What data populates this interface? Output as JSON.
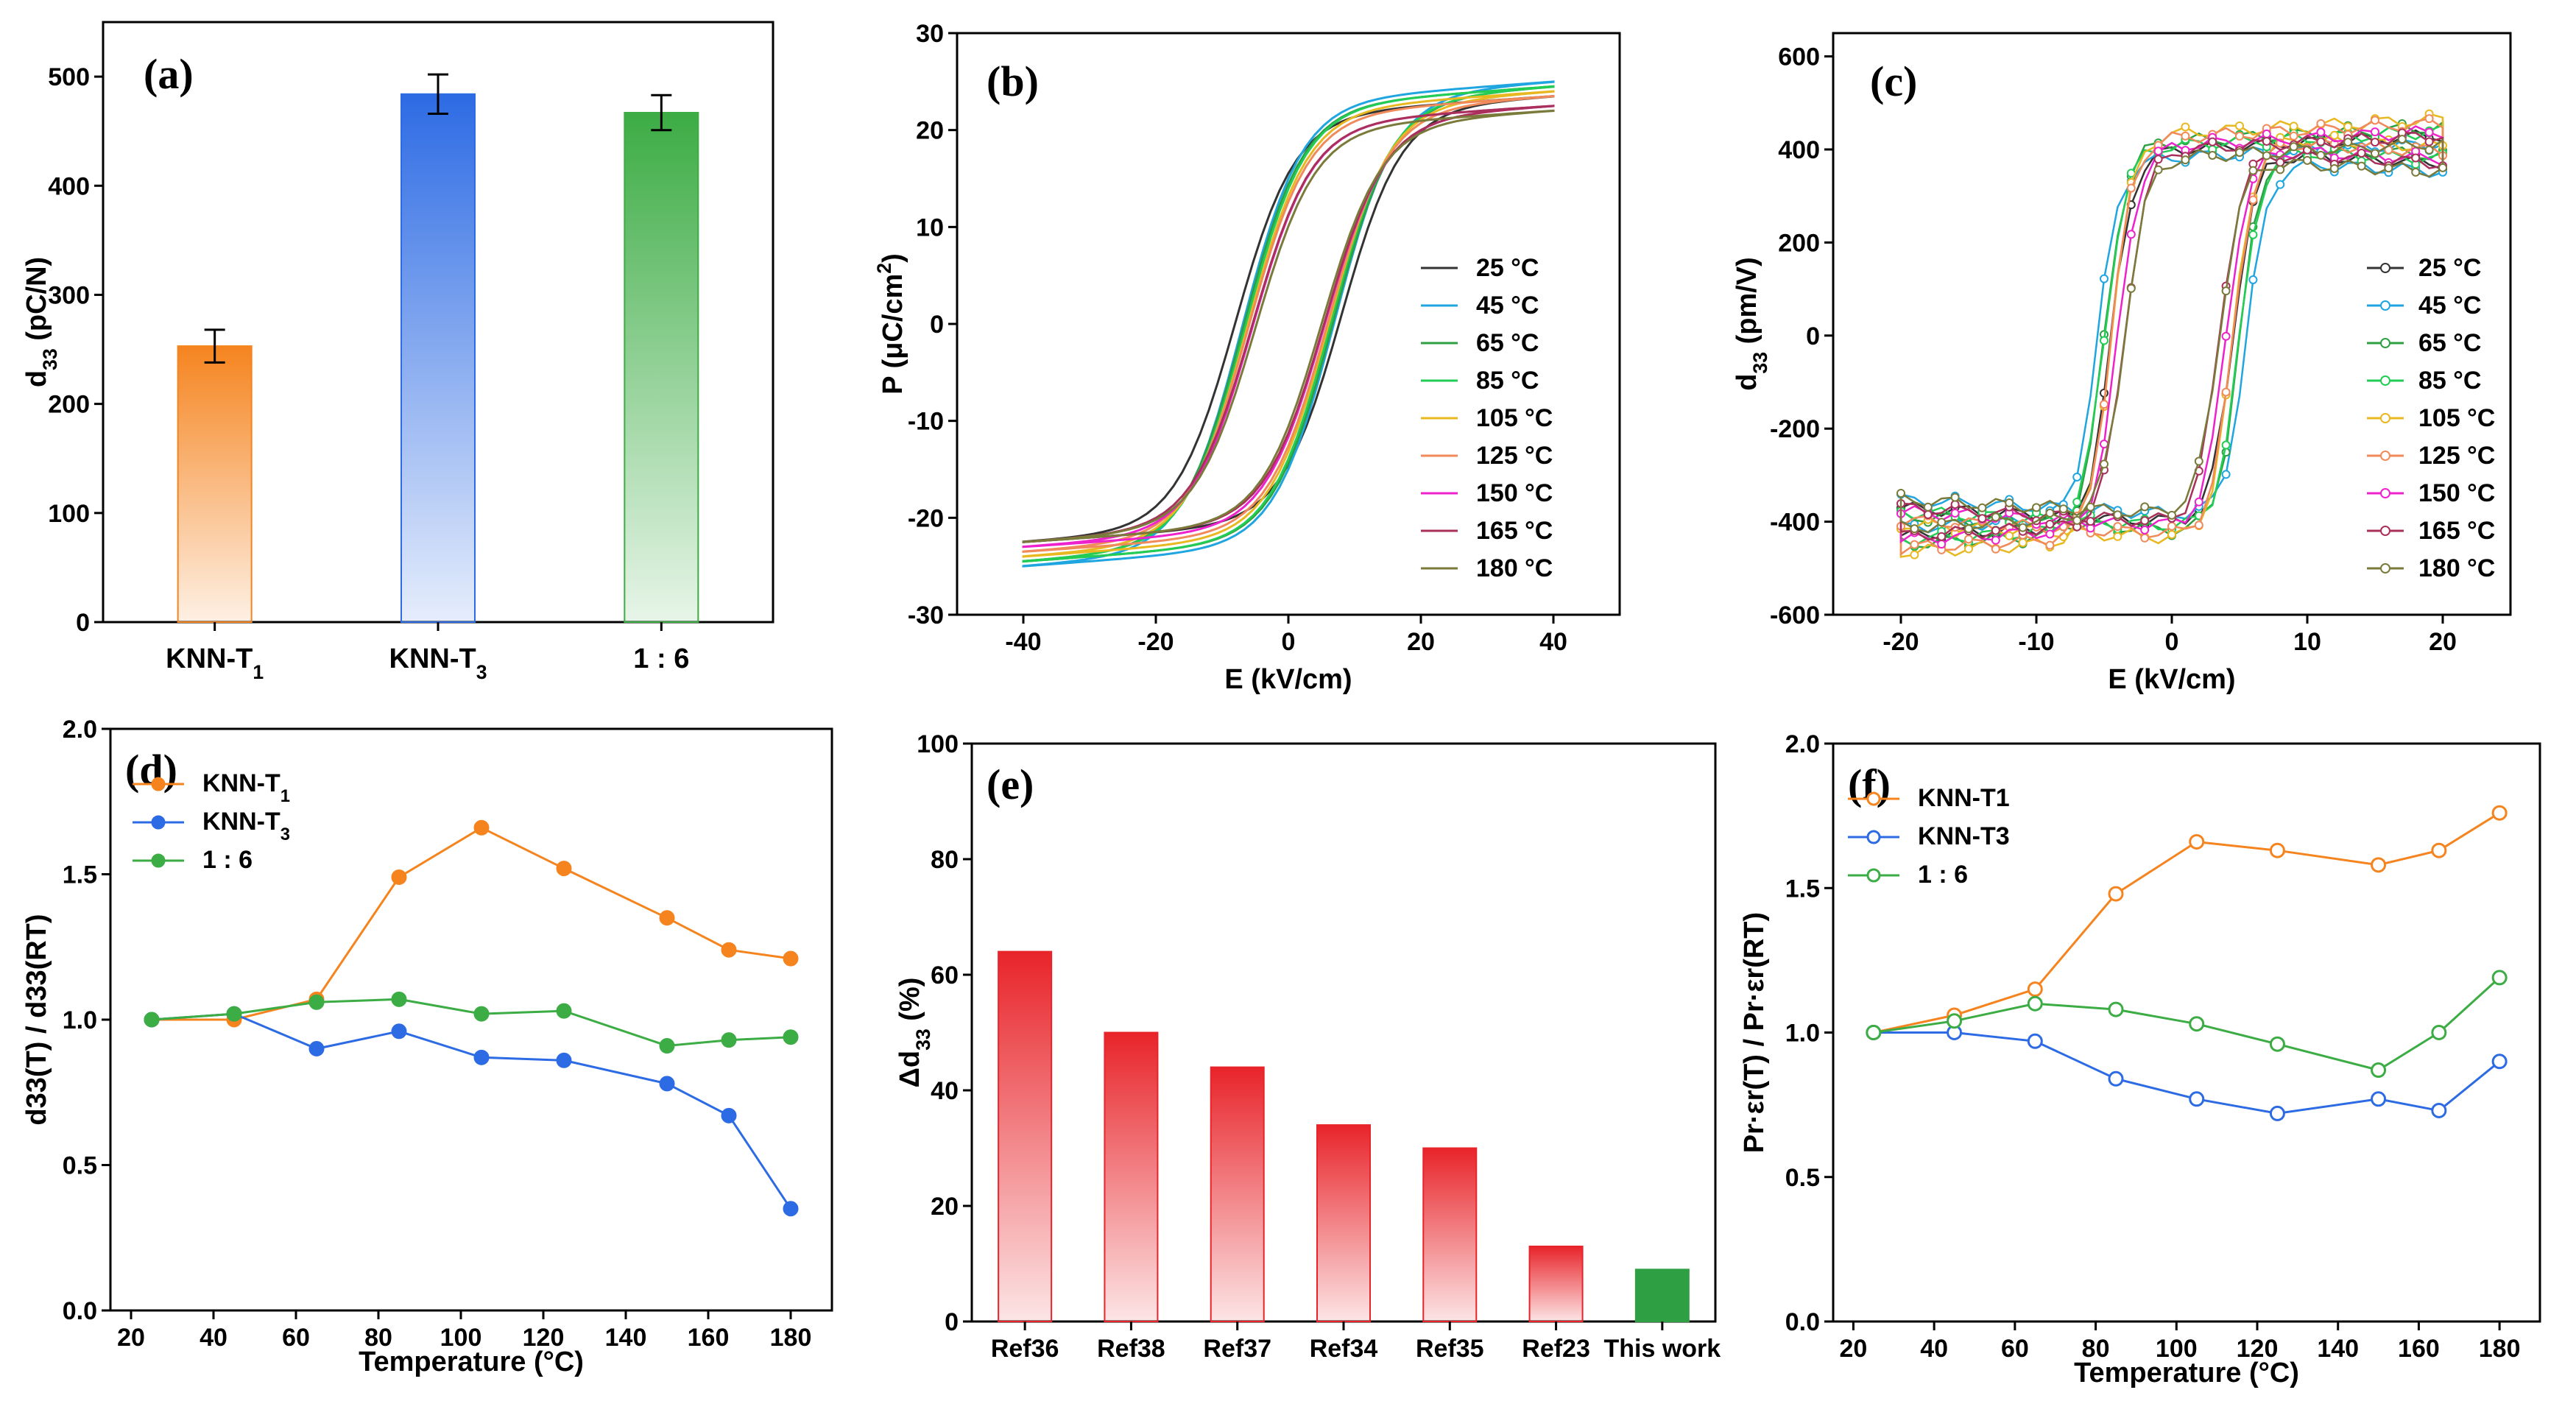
{
  "chart_data": [
    {
      "panel": "(a)",
      "type": "bar",
      "categories": [
        "KNN-T1",
        "KNN-T3",
        "1 : 6"
      ],
      "category_labels": [
        {
          "main": "KNN-T",
          "sub": "1"
        },
        {
          "main": "KNN-T",
          "sub": "3"
        },
        {
          "main": "1 : 6",
          "sub": ""
        }
      ],
      "values": [
        253,
        484,
        467
      ],
      "errors": [
        15,
        18,
        16
      ],
      "colors": [
        "#f5841f",
        "#2d6be4",
        "#3cac44"
      ],
      "ylabel": "d33 (pC/N)",
      "ylabel_main": "d",
      "ylabel_sub": "33",
      "ylabel_rest": " (pC/N)",
      "ylim": [
        0,
        550
      ],
      "yticks": [
        0,
        100,
        200,
        300,
        400,
        500
      ]
    },
    {
      "panel": "(b)",
      "type": "line",
      "xlabel": "E (kV/cm)",
      "ylabel_main": "P (",
      "ylabel_mu": "μ",
      "ylabel_unit": "C/cm",
      "ylabel_sup": "2",
      "ylabel_end": ")",
      "ylabel": "P (μC/cm2)",
      "xlim": [
        -50,
        50
      ],
      "ylim": [
        -30,
        30
      ],
      "xticks": [
        -40,
        -20,
        0,
        20,
        40
      ],
      "yticks": [
        -30,
        -20,
        -10,
        0,
        10,
        20,
        30
      ],
      "series": [
        {
          "name": "25 °C",
          "color": "#333333",
          "Ec": 8,
          "Pmax": 23.5,
          "Pr": 20,
          "Pneg": -22.5
        },
        {
          "name": "45 °C",
          "color": "#1fa5e0",
          "Ec": 7,
          "Pmax": 25,
          "Pr": 19,
          "Pneg": -25
        },
        {
          "name": "65 °C",
          "color": "#2ea043",
          "Ec": 6.8,
          "Pmax": 24.5,
          "Pr": 18.5,
          "Pneg": -24.5
        },
        {
          "name": "85 °C",
          "color": "#22cc55",
          "Ec": 6.5,
          "Pmax": 24.5,
          "Pr": 18,
          "Pneg": -24.5
        },
        {
          "name": "105 °C",
          "color": "#e8b820",
          "Ec": 6.2,
          "Pmax": 24,
          "Pr": 17.5,
          "Pneg": -24
        },
        {
          "name": "125 °C",
          "color": "#f08a5a",
          "Ec": 6,
          "Pmax": 23.5,
          "Pr": 17,
          "Pneg": -23.5
        },
        {
          "name": "150 °C",
          "color": "#ee22cc",
          "Ec": 5.5,
          "Pmax": 22.5,
          "Pr": 15,
          "Pneg": -23
        },
        {
          "name": "165 °C",
          "color": "#a8305a",
          "Ec": 5.5,
          "Pmax": 22.5,
          "Pr": 15,
          "Pneg": -22.5
        },
        {
          "name": "180 °C",
          "color": "#7a7a3a",
          "Ec": 5,
          "Pmax": 22,
          "Pr": 13,
          "Pneg": -22.5
        }
      ]
    },
    {
      "panel": "(c)",
      "type": "line",
      "xlabel": "E (kV/cm)",
      "ylabel": "d33 (pm/V)",
      "ylabel_main": "d",
      "ylabel_sub": "33",
      "ylabel_rest": " (pm/V)",
      "xlim": [
        -25,
        25
      ],
      "ylim": [
        -600,
        650
      ],
      "xticks": [
        -20,
        -10,
        0,
        10,
        20
      ],
      "yticks": [
        -600,
        -400,
        -200,
        0,
        200,
        400,
        600
      ],
      "series": [
        {
          "name": "25 °C",
          "color": "#333333",
          "Ec": 4.5,
          "peak": 460
        },
        {
          "name": "45 °C",
          "color": "#1fa5e0",
          "Ec": 5.5,
          "peak": 440
        },
        {
          "name": "65 °C",
          "color": "#2ea043",
          "Ec": 5,
          "peak": 480
        },
        {
          "name": "85 °C",
          "color": "#22cc55",
          "Ec": 5,
          "peak": 470
        },
        {
          "name": "105 °C",
          "color": "#e8b820",
          "Ec": 4.5,
          "peak": 500
        },
        {
          "name": "125 °C",
          "color": "#f08a5a",
          "Ec": 4.5,
          "peak": 490
        },
        {
          "name": "150 °C",
          "color": "#ee22cc",
          "Ec": 4,
          "peak": 470
        },
        {
          "name": "165 °C",
          "color": "#a8305a",
          "Ec": 3.5,
          "peak": 460
        },
        {
          "name": "180 °C",
          "color": "#7a7a3a",
          "Ec": 3.5,
          "peak": 440
        }
      ]
    },
    {
      "panel": "(d)",
      "type": "line",
      "xlabel": "Temperature (°C)",
      "ylabel": "d33(T) / d33(RT)",
      "x": [
        25,
        45,
        65,
        85,
        105,
        125,
        150,
        165,
        180
      ],
      "xlim": [
        15,
        190
      ],
      "ylim": [
        0,
        2
      ],
      "xticks": [
        20,
        40,
        60,
        80,
        100,
        120,
        140,
        160,
        180
      ],
      "yticks": [
        0.0,
        0.5,
        1.0,
        1.5,
        2.0
      ],
      "ytick_labels": [
        "0.0",
        "0.5",
        "1.0",
        "1.5",
        "2.0"
      ],
      "series": [
        {
          "name": "KNN-T1",
          "label_main": "KNN-T",
          "label_sub": "1",
          "color": "#f5841f",
          "values": [
            1.0,
            1.0,
            1.07,
            1.49,
            1.66,
            1.52,
            1.35,
            1.24,
            1.21
          ]
        },
        {
          "name": "KNN-T3",
          "label_main": "KNN-T",
          "label_sub": "3",
          "color": "#2d6be4",
          "values": [
            1.0,
            1.02,
            0.9,
            0.96,
            0.87,
            0.86,
            0.78,
            0.67,
            0.35
          ]
        },
        {
          "name": "1 : 6",
          "label_main": "1 : 6",
          "label_sub": "",
          "color": "#3cac44",
          "values": [
            1.0,
            1.02,
            1.06,
            1.07,
            1.02,
            1.03,
            0.91,
            0.93,
            0.94
          ]
        }
      ]
    },
    {
      "panel": "(e)",
      "type": "bar",
      "categories": [
        "Ref36",
        "Ref38",
        "Ref37",
        "Ref34",
        "Ref35",
        "Ref23",
        "This work"
      ],
      "values": [
        64,
        50,
        44,
        34,
        30,
        13,
        9
      ],
      "ylabel": "Δd33 (%)",
      "ylabel_main": "Δd",
      "ylabel_sub": "33",
      "ylabel_rest": " (%)",
      "ylim": [
        0,
        100
      ],
      "yticks": [
        0,
        20,
        40,
        60,
        80,
        100
      ],
      "highlight_color": "#2ea043",
      "bar_color": "#e8242a"
    },
    {
      "panel": "(f)",
      "type": "line",
      "xlabel": "Temperature (°C)",
      "ylabel": "Pr·εr(T) / Pr·εr(RT)",
      "x": [
        25,
        45,
        65,
        85,
        105,
        125,
        150,
        165,
        180
      ],
      "xlim": [
        15,
        190
      ],
      "ylim": [
        0,
        2
      ],
      "xticks": [
        20,
        40,
        60,
        80,
        100,
        120,
        140,
        160,
        180
      ],
      "yticks": [
        0.0,
        0.5,
        1.0,
        1.5,
        2.0
      ],
      "ytick_labels": [
        "0.0",
        "0.5",
        "1.0",
        "1.5",
        "2.0"
      ],
      "series": [
        {
          "name": "KNN-T1",
          "label_main": "KNN-T1",
          "label_sub": "",
          "color": "#f5841f",
          "values": [
            1.0,
            1.06,
            1.15,
            1.48,
            1.66,
            1.63,
            1.58,
            1.63,
            1.76
          ]
        },
        {
          "name": "KNN-T3",
          "label_main": "KNN-T3",
          "label_sub": "",
          "color": "#2d6be4",
          "values": [
            1.0,
            1.0,
            0.97,
            0.84,
            0.77,
            0.72,
            0.77,
            0.73,
            0.9
          ]
        },
        {
          "name": "1 : 6",
          "label_main": "1 : 6",
          "label_sub": "",
          "color": "#3cac44",
          "values": [
            1.0,
            1.04,
            1.1,
            1.08,
            1.03,
            0.96,
            0.87,
            1.0,
            1.19
          ]
        }
      ]
    }
  ],
  "panel_labels": [
    "(a)",
    "(b)",
    "(c)",
    "(d)",
    "(e)",
    "(f)"
  ]
}
